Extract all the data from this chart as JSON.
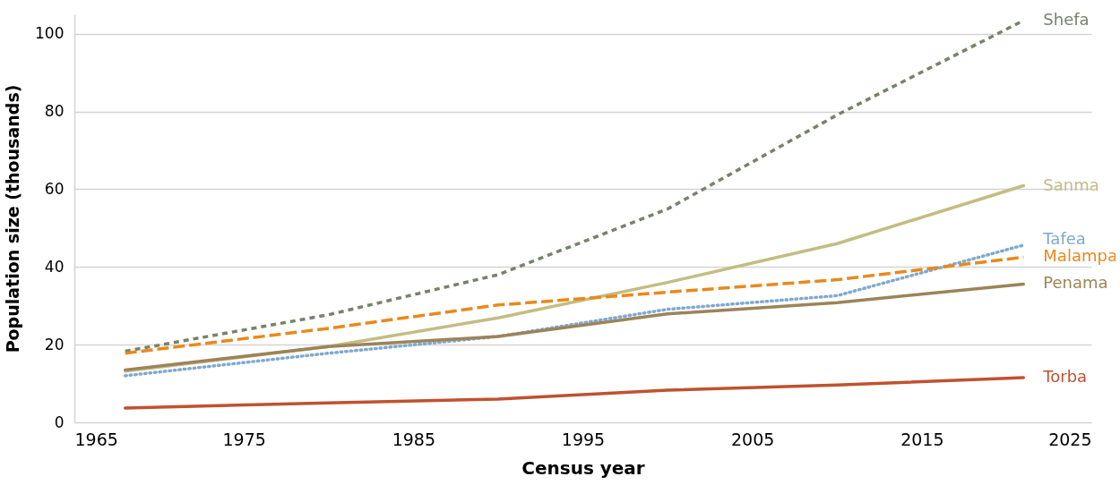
{
  "chart_data": {
    "type": "line",
    "xlabel": "Census year",
    "ylabel": "Population size (thousands)",
    "x": [
      1968,
      1980,
      1990,
      2000,
      2010,
      2021
    ],
    "xlim": [
      1965,
      2025
    ],
    "xticks": [
      1965,
      1975,
      1985,
      1995,
      2005,
      2015,
      2025
    ],
    "ylim": [
      0,
      105
    ],
    "yticks": [
      0,
      20,
      40,
      60,
      80,
      100
    ],
    "grid": "y",
    "legend": false,
    "series": [
      {
        "name": "Shefa",
        "color": "#76836a",
        "line_style": "dashed",
        "values": [
          18.3,
          27.7,
          38.0,
          54.9,
          79.1,
          103.4
        ]
      },
      {
        "name": "Sanma",
        "color": "#c4bc82",
        "line_style": "solid",
        "values": [
          13.2,
          19.5,
          26.9,
          36.0,
          46.0,
          60.9
        ]
      },
      {
        "name": "Tafea",
        "color": "#7fa9d0",
        "line_style": "dotted",
        "values": [
          12.0,
          17.8,
          22.1,
          29.1,
          32.6,
          45.6
        ]
      },
      {
        "name": "Malampa",
        "color": "#e8891c",
        "line_style": "longdash",
        "values": [
          17.8,
          24.2,
          30.2,
          33.5,
          36.7,
          42.5
        ]
      },
      {
        "name": "Penama",
        "color": "#9c845a",
        "line_style": "solid",
        "values": [
          13.5,
          19.5,
          22.1,
          27.9,
          30.8,
          35.6
        ]
      },
      {
        "name": "Torba",
        "color": "#c0522e",
        "line_style": "solid",
        "values": [
          3.7,
          5.0,
          6.0,
          8.3,
          9.6,
          11.5
        ]
      }
    ]
  }
}
